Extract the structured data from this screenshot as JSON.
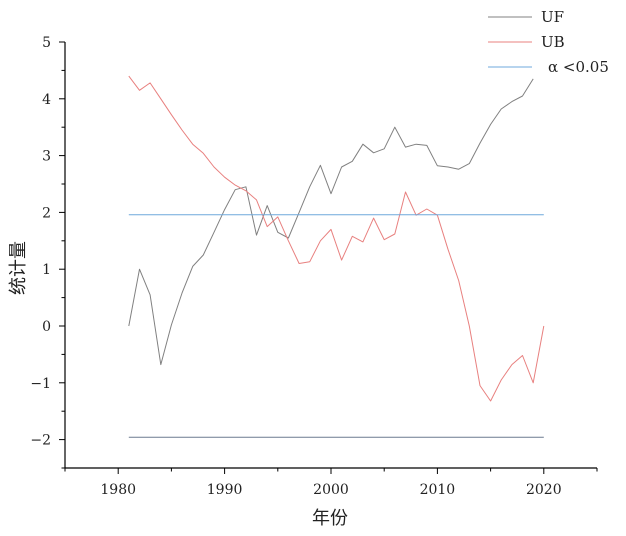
{
  "chart_data": {
    "type": "line",
    "title": "",
    "xlabel": "年份",
    "ylabel": "统计量",
    "xlim": [
      1975,
      2025
    ],
    "ylim": [
      -2.5,
      5
    ],
    "xticks": [
      1980,
      1990,
      2000,
      2010,
      2020
    ],
    "yticks": [
      -2,
      -1,
      0,
      1,
      2,
      3,
      4,
      5
    ],
    "xtick_labels": [
      "1980",
      "1990",
      "2000",
      "2010",
      "2020"
    ],
    "ytick_labels": [
      "−2",
      "−1",
      "0",
      "1",
      "2",
      "3",
      "4",
      "5"
    ],
    "grid": false,
    "legend_position": "top-right",
    "colors": {
      "UF": "#808080",
      "UB": "#e8807f",
      "sig": "#6fa8dc",
      "neg": "#6b7a8f"
    },
    "series": [
      {
        "name": "UF",
        "x": [
          1981,
          1982,
          1983,
          1984,
          1985,
          1986,
          1987,
          1988,
          1989,
          1990,
          1991,
          1992,
          1993,
          1994,
          1995,
          1996,
          1997,
          1998,
          1999,
          2000,
          2001,
          2002,
          2003,
          2004,
          2005,
          2006,
          2007,
          2008,
          2009,
          2010,
          2011,
          2012,
          2013,
          2014,
          2015,
          2016,
          2017,
          2018,
          2019
        ],
        "values": [
          0.0,
          1.0,
          0.55,
          -0.68,
          0.02,
          0.58,
          1.05,
          1.25,
          1.65,
          2.05,
          2.4,
          2.45,
          1.6,
          2.12,
          1.65,
          1.55,
          2.0,
          2.45,
          2.83,
          2.33,
          2.8,
          2.9,
          3.2,
          3.05,
          3.12,
          3.5,
          3.15,
          3.2,
          3.18,
          2.82,
          2.8,
          2.76,
          2.86,
          3.22,
          3.55,
          3.82,
          3.95,
          4.05,
          4.35
        ]
      },
      {
        "name": "UB",
        "x": [
          1981,
          1982,
          1983,
          1984,
          1985,
          1986,
          1987,
          1988,
          1989,
          1990,
          1991,
          1992,
          1993,
          1994,
          1995,
          1996,
          1997,
          1998,
          1999,
          2000,
          2001,
          2002,
          2003,
          2004,
          2005,
          2006,
          2007,
          2008,
          2009,
          2010,
          2011,
          2012,
          2013,
          2014,
          2015,
          2016,
          2017,
          2018,
          2019,
          2020
        ],
        "values": [
          4.4,
          4.15,
          4.28,
          4.0,
          3.72,
          3.45,
          3.2,
          3.04,
          2.8,
          2.62,
          2.48,
          2.38,
          2.22,
          1.75,
          1.92,
          1.5,
          1.1,
          1.13,
          1.5,
          1.7,
          1.16,
          1.58,
          1.48,
          1.9,
          1.52,
          1.62,
          2.36,
          1.95,
          2.06,
          1.95,
          1.35,
          0.8,
          0.0,
          -1.05,
          -1.32,
          -0.95,
          -0.68,
          -0.52,
          -1.0,
          0.0
        ]
      },
      {
        "name": "α <0.05",
        "x": [
          1981,
          2020
        ],
        "values": [
          1.96,
          1.96
        ]
      },
      {
        "name": "",
        "x": [
          1981,
          2020
        ],
        "values": [
          -1.96,
          -1.96
        ]
      }
    ],
    "legend": [
      "UF",
      "UB",
      "α <0.05"
    ]
  }
}
